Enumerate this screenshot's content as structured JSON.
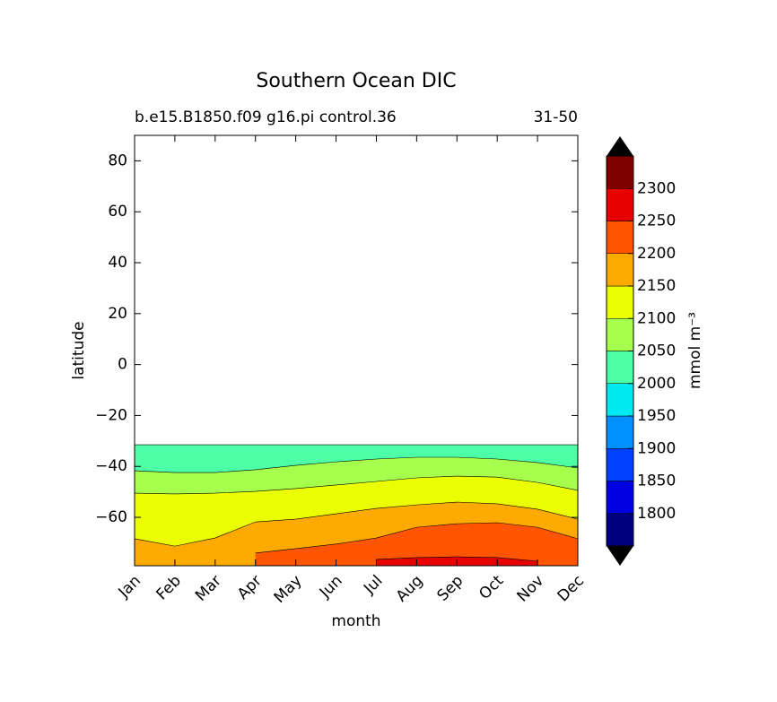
{
  "chart_data": {
    "type": "contour",
    "title": "Southern Ocean DIC",
    "subtitle_left": "b.e15.B1850.f09 g16.pi control.36",
    "subtitle_right": "31-50",
    "xlabel": "month",
    "ylabel": "latitude",
    "categories": [
      "Jan",
      "Feb",
      "Mar",
      "Apr",
      "May",
      "Jun",
      "Jul",
      "Aug",
      "Sep",
      "Oct",
      "Nov",
      "Dec"
    ],
    "ylim": [
      -79,
      90
    ],
    "yticks": [
      {
        "value": -60,
        "label": "−60"
      },
      {
        "value": -40,
        "label": "−40"
      },
      {
        "value": -20,
        "label": "−20"
      },
      0,
      20,
      40,
      60,
      80
    ],
    "data_top": -31.5,
    "base_level": 2000,
    "contours": [
      {
        "level": 2050,
        "lat": [
          -41.7,
          -42.4,
          -42.4,
          -41.3,
          -39.6,
          -38.2,
          -37.1,
          -36.4,
          -36.4,
          -37.1,
          -38.5,
          -40.6
        ]
      },
      {
        "level": 2100,
        "lat": [
          -50.5,
          -50.8,
          -50.5,
          -49.8,
          -48.7,
          -47.3,
          -45.9,
          -44.5,
          -43.8,
          -44.2,
          -46.3,
          -49.4
        ]
      },
      {
        "level": 2150,
        "lat": [
          -68.4,
          -71.3,
          -68.1,
          -61.8,
          -60.7,
          -58.6,
          -56.5,
          -55.1,
          -54.0,
          -54.7,
          -56.8,
          -60.7
        ]
      },
      {
        "level": 2200,
        "lat": [
          null,
          null,
          null,
          -74.0,
          -72.3,
          -70.5,
          -68.1,
          -63.9,
          -62.5,
          -62.1,
          -63.9,
          -68.4
        ]
      },
      {
        "level": 2250,
        "lat": [
          null,
          null,
          null,
          null,
          null,
          null,
          -76.5,
          -75.8,
          -75.5,
          -75.8,
          -77.2,
          null
        ]
      }
    ],
    "colorbar": {
      "label": "mmol m⁻³",
      "levels": [
        1750,
        1800,
        1850,
        1900,
        1950,
        2000,
        2050,
        2100,
        2150,
        2200,
        2250,
        2300,
        2350
      ],
      "colors": [
        "#00007f",
        "#0000e0",
        "#0040ff",
        "#0090ff",
        "#00e8f0",
        "#4dffa6",
        "#a6ff4d",
        "#ebff00",
        "#ffaa00",
        "#ff5500",
        "#e60000",
        "#800000"
      ],
      "extend_color": "#000000",
      "ticks": [
        1800,
        1850,
        1900,
        1950,
        2000,
        2050,
        2100,
        2150,
        2200,
        2250,
        2300
      ]
    }
  }
}
